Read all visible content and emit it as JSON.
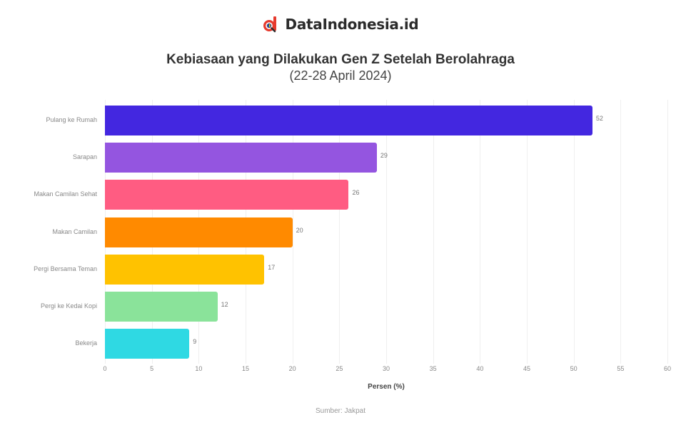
{
  "header": {
    "brand": "DataIndonesia.id",
    "brand_icon": "magnifier-d-logo-icon",
    "brand_color": "#e63a2e"
  },
  "chart_data": {
    "type": "bar",
    "orientation": "horizontal",
    "title": "Kebiasaan yang Dilakukan Gen Z Setelah Berolahraga",
    "subtitle": "(22-28 April 2024)",
    "categories": [
      "Pulang ke Rumah",
      "Sarapan",
      "Makan Camilan Sehat",
      "Makan Camilan",
      "Pergi Bersama Teman",
      "Pergi ke Kedai Kopi",
      "Bekerja"
    ],
    "values": [
      52,
      29,
      26,
      20,
      17,
      12,
      9
    ],
    "value_labels": [
      "52",
      "29",
      "26",
      "20",
      "17",
      "12",
      "9"
    ],
    "colors": [
      "#4327e0",
      "#9455e0",
      "#ff5c82",
      "#ff8a00",
      "#ffc200",
      "#8ae39a",
      "#2fd9e3"
    ],
    "xlabel": "Persen (%)",
    "ylabel": "",
    "xlim": [
      0,
      60
    ],
    "xticks": [
      "0",
      "5",
      "10",
      "15",
      "20",
      "25",
      "30",
      "35",
      "40",
      "45",
      "50",
      "55",
      "60"
    ],
    "grid": true,
    "legend": "none",
    "source": "Sumber: Jakpat"
  }
}
